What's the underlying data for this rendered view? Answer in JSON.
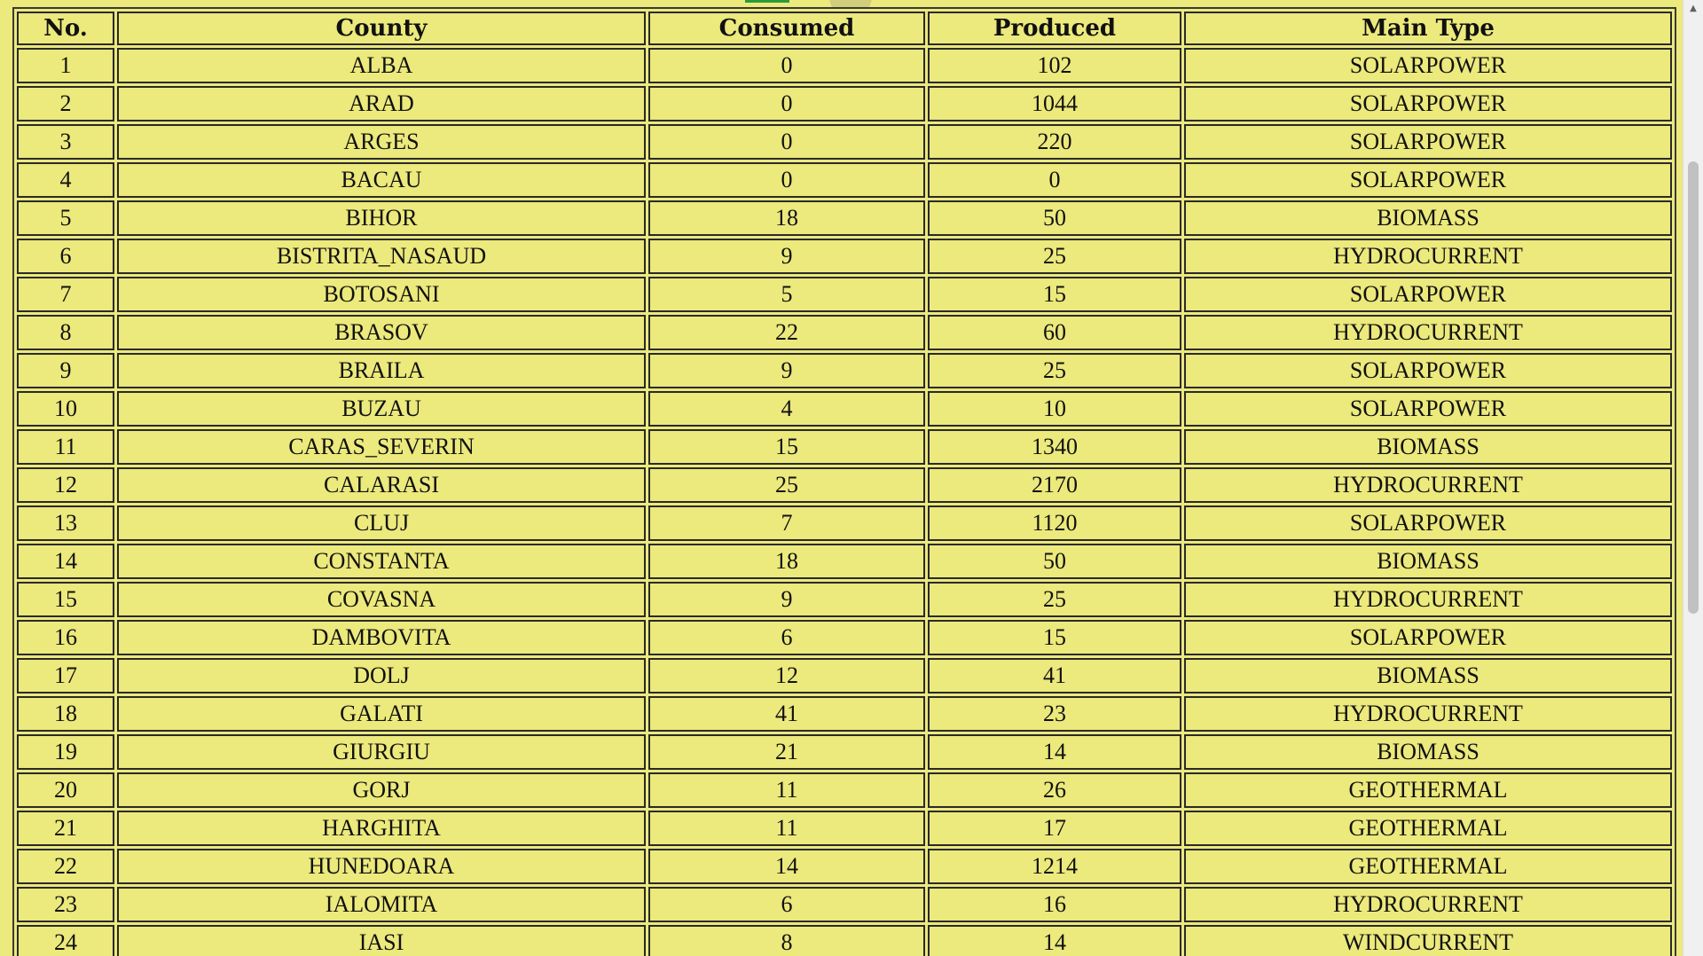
{
  "table": {
    "headers": {
      "no": "No.",
      "county": "County",
      "consumed": "Consumed",
      "produced": "Produced",
      "main_type": "Main Type"
    },
    "rows": [
      {
        "no": "1",
        "county": "ALBA",
        "consumed": "0",
        "produced": "102",
        "main_type": "SOLARPOWER"
      },
      {
        "no": "2",
        "county": "ARAD",
        "consumed": "0",
        "produced": "1044",
        "main_type": "SOLARPOWER"
      },
      {
        "no": "3",
        "county": "ARGES",
        "consumed": "0",
        "produced": "220",
        "main_type": "SOLARPOWER"
      },
      {
        "no": "4",
        "county": "BACAU",
        "consumed": "0",
        "produced": "0",
        "main_type": "SOLARPOWER"
      },
      {
        "no": "5",
        "county": "BIHOR",
        "consumed": "18",
        "produced": "50",
        "main_type": "BIOMASS"
      },
      {
        "no": "6",
        "county": "BISTRITA_NASAUD",
        "consumed": "9",
        "produced": "25",
        "main_type": "HYDROCURRENT"
      },
      {
        "no": "7",
        "county": "BOTOSANI",
        "consumed": "5",
        "produced": "15",
        "main_type": "SOLARPOWER"
      },
      {
        "no": "8",
        "county": "BRASOV",
        "consumed": "22",
        "produced": "60",
        "main_type": "HYDROCURRENT"
      },
      {
        "no": "9",
        "county": "BRAILA",
        "consumed": "9",
        "produced": "25",
        "main_type": "SOLARPOWER"
      },
      {
        "no": "10",
        "county": "BUZAU",
        "consumed": "4",
        "produced": "10",
        "main_type": "SOLARPOWER"
      },
      {
        "no": "11",
        "county": "CARAS_SEVERIN",
        "consumed": "15",
        "produced": "1340",
        "main_type": "BIOMASS"
      },
      {
        "no": "12",
        "county": "CALARASI",
        "consumed": "25",
        "produced": "2170",
        "main_type": "HYDROCURRENT"
      },
      {
        "no": "13",
        "county": "CLUJ",
        "consumed": "7",
        "produced": "1120",
        "main_type": "SOLARPOWER"
      },
      {
        "no": "14",
        "county": "CONSTANTA",
        "consumed": "18",
        "produced": "50",
        "main_type": "BIOMASS"
      },
      {
        "no": "15",
        "county": "COVASNA",
        "consumed": "9",
        "produced": "25",
        "main_type": "HYDROCURRENT"
      },
      {
        "no": "16",
        "county": "DAMBOVITA",
        "consumed": "6",
        "produced": "15",
        "main_type": "SOLARPOWER"
      },
      {
        "no": "17",
        "county": "DOLJ",
        "consumed": "12",
        "produced": "41",
        "main_type": "BIOMASS"
      },
      {
        "no": "18",
        "county": "GALATI",
        "consumed": "41",
        "produced": "23",
        "main_type": "HYDROCURRENT"
      },
      {
        "no": "19",
        "county": "GIURGIU",
        "consumed": "21",
        "produced": "14",
        "main_type": "BIOMASS"
      },
      {
        "no": "20",
        "county": "GORJ",
        "consumed": "11",
        "produced": "26",
        "main_type": "GEOTHERMAL"
      },
      {
        "no": "21",
        "county": "HARGHITA",
        "consumed": "11",
        "produced": "17",
        "main_type": "GEOTHERMAL"
      },
      {
        "no": "22",
        "county": "HUNEDOARA",
        "consumed": "14",
        "produced": "1214",
        "main_type": "GEOTHERMAL"
      },
      {
        "no": "23",
        "county": "IALOMITA",
        "consumed": "6",
        "produced": "16",
        "main_type": "HYDROCURRENT"
      },
      {
        "no": "24",
        "county": "IASI",
        "consumed": "8",
        "produced": "14",
        "main_type": "WINDCURRENT"
      },
      {
        "no": "",
        "county": "",
        "consumed": "",
        "produced": "",
        "main_type": ""
      }
    ]
  },
  "scrollbar": {
    "up_arrow": "▲"
  },
  "colors": {
    "page_background": "#ece97d",
    "cell_border": "#2a2a2a",
    "text": "#111111"
  }
}
